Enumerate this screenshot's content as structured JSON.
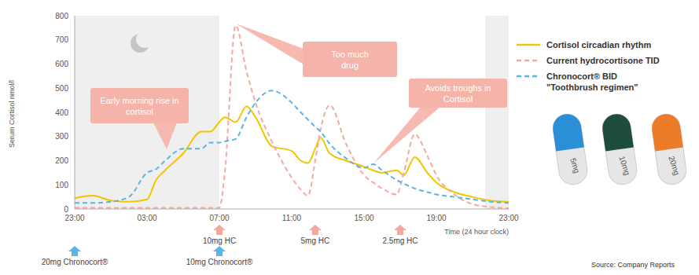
{
  "chart_data": {
    "type": "line",
    "x_label": "Time (24 hour clock)",
    "y_label": "Serum Cortisol nmol/l",
    "x": [
      0,
      1,
      2,
      3,
      4,
      4.5,
      5,
      6,
      7,
      7.5,
      8,
      8.3,
      8.9,
      9.5,
      10,
      10.9,
      12,
      12.5,
      12.9,
      13.3,
      13.6,
      14.1,
      15,
      16,
      16.5,
      17,
      17.8,
      18.2,
      18.8,
      19.5,
      20,
      21,
      22,
      23,
      24
    ],
    "xlim": [
      0,
      24
    ],
    "xticks": [
      {
        "value": 0,
        "label": "23:00"
      },
      {
        "value": 4,
        "label": "03:00"
      },
      {
        "value": 8,
        "label": "07:00"
      },
      {
        "value": 12,
        "label": "11:00"
      },
      {
        "value": 16,
        "label": "15:00"
      },
      {
        "value": 20,
        "label": "19:00"
      },
      {
        "value": 24,
        "label": "23:00"
      }
    ],
    "ylim": [
      0,
      800
    ],
    "yticks": [
      0,
      100,
      200,
      300,
      400,
      500,
      600,
      700,
      800
    ],
    "grid": false,
    "legend": "right",
    "series": [
      {
        "name": "Cortisol circadian rhythm",
        "color": "#f5c400",
        "line_style": "solid",
        "values": [
          45,
          55,
          35,
          30,
          40,
          120,
          160,
          230,
          320,
          320,
          360,
          380,
          360,
          425,
          380,
          260,
          240,
          200,
          190,
          250,
          295,
          230,
          200,
          175,
          160,
          150,
          160,
          140,
          215,
          150,
          110,
          70,
          50,
          35,
          30
        ]
      },
      {
        "name": "Current hydrocortisone TID",
        "color": "#f4a9a0",
        "line_style": "dashed",
        "values": [
          5,
          5,
          5,
          5,
          5,
          5,
          5,
          5,
          5,
          5,
          5,
          150,
          760,
          570,
          440,
          280,
          130,
          80,
          55,
          200,
          330,
          430,
          270,
          140,
          110,
          85,
          60,
          150,
          310,
          220,
          140,
          60,
          20,
          8,
          3
        ]
      },
      {
        "name": "Chronocort® BID \"Toothbrush regimen\"",
        "color": "#5ab4e5",
        "line_style": "dashed",
        "values": [
          25,
          25,
          30,
          50,
          150,
          165,
          200,
          250,
          250,
          275,
          275,
          280,
          290,
          380,
          440,
          490,
          440,
          400,
          370,
          340,
          320,
          270,
          210,
          170,
          185,
          160,
          120,
          105,
          85,
          70,
          60,
          50,
          40,
          30,
          25
        ]
      }
    ],
    "night": [
      [
        0,
        8
      ],
      [
        22.7,
        24
      ]
    ],
    "annotations": [
      {
        "text": "Early morning rise in cortisol"
      },
      {
        "text": "Too much drug"
      },
      {
        "text": "Avoids troughs in Cortisol"
      }
    ],
    "doses": [
      {
        "x": 8,
        "label": "10mg HC",
        "regimen": "Current hydrocortisone TID"
      },
      {
        "x": 13.3,
        "label": "5mg HC",
        "regimen": "Current hydrocortisone TID"
      },
      {
        "x": 18,
        "label": "2.5mg HC",
        "regimen": "Current hydrocortisone TID"
      },
      {
        "x": 0,
        "label": "20mg Chronocort®",
        "regimen": "Chronocort® BID \"Toothbrush regimen\""
      },
      {
        "x": 8,
        "label": "10mg Chronocort®",
        "regimen": "Chronocort® BID \"Toothbrush regimen\""
      }
    ],
    "capsules": [
      {
        "label": "5mg",
        "color": "#2b8fd6"
      },
      {
        "label": "10mg",
        "color": "#1f4d3c"
      },
      {
        "label": "20mg",
        "color": "#ec7c2a"
      }
    ],
    "source": "Source: Company Reports"
  }
}
